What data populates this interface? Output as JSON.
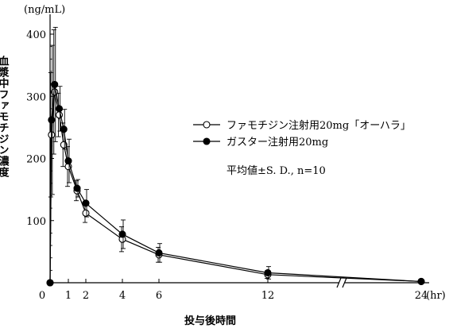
{
  "chart_data": {
    "type": "line",
    "units_label": "(ng/mL)",
    "ylabel": "血漿中ファモチジン濃度",
    "xlabel": "投与後時間",
    "x_unit": "(hr)",
    "x_ticks": [
      {
        "value": 0,
        "label": "0"
      },
      {
        "value": 1,
        "label": "1"
      },
      {
        "value": 2,
        "label": "2"
      },
      {
        "value": 4,
        "label": "4"
      },
      {
        "value": 6,
        "label": "6"
      },
      {
        "value": 12,
        "label": "12"
      },
      {
        "value": 24,
        "label": "24"
      }
    ],
    "y_ticks": [
      {
        "value": 100,
        "label": "100"
      },
      {
        "value": 200,
        "label": "200"
      },
      {
        "value": 300,
        "label": "300"
      },
      {
        "value": 400,
        "label": "400"
      }
    ],
    "ylim": [
      0,
      420
    ],
    "axis_break": "between 12 and 24 hr",
    "legend_position": "right",
    "annotation": "平均値±S. D., n=10",
    "series": [
      {
        "name": "ファモチジン注射用20mg「オーハラ」",
        "marker": "open-circle",
        "x": [
          0,
          0.08,
          0.25,
          0.5,
          0.75,
          1,
          1.5,
          2,
          4,
          6,
          12,
          24
        ],
        "y": [
          0,
          238,
          307,
          270,
          222,
          187,
          148,
          112,
          70,
          45,
          13,
          2
        ],
        "sd": [
          0,
          100,
          100,
          35,
          35,
          32,
          16,
          15,
          20,
          12,
          6,
          1
        ]
      },
      {
        "name": "ガスター注射用20mg",
        "marker": "filled-circle",
        "x": [
          0,
          0.08,
          0.25,
          0.5,
          0.75,
          1,
          1.5,
          2,
          4,
          6,
          12,
          24
        ],
        "y": [
          0,
          262,
          319,
          280,
          247,
          196,
          152,
          128,
          78,
          48,
          16,
          2
        ],
        "sd": [
          0,
          120,
          92,
          36,
          32,
          35,
          14,
          22,
          23,
          15,
          10,
          1
        ]
      }
    ]
  }
}
